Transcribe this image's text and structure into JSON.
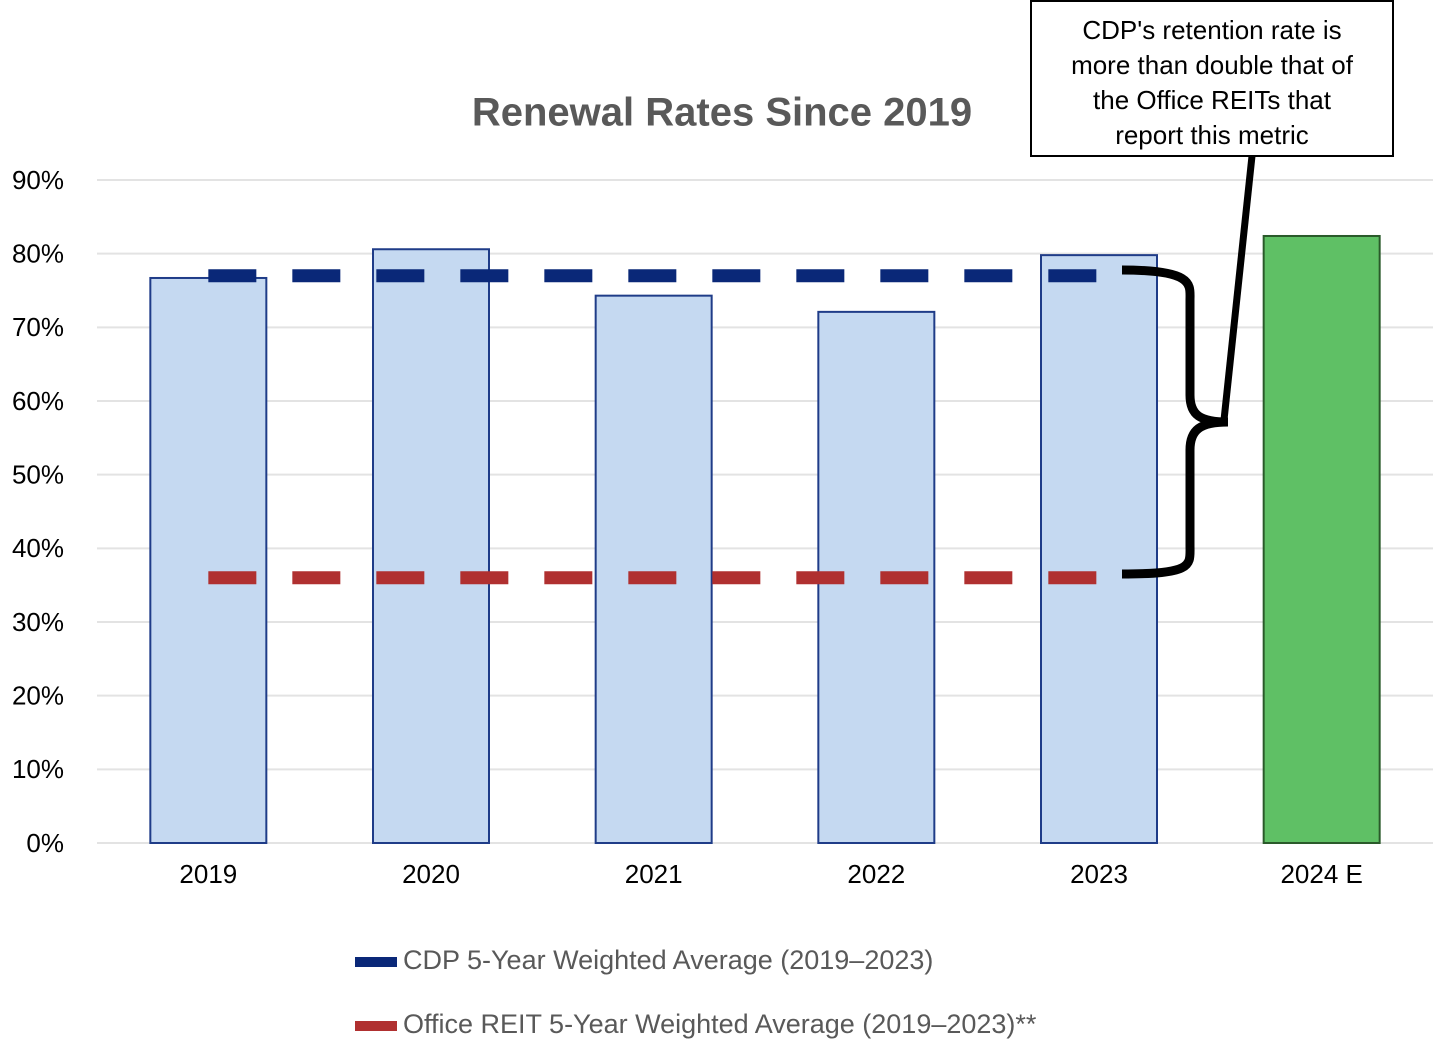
{
  "chart_data": {
    "type": "bar",
    "title": "Renewal Rates Since 2019",
    "categories": [
      "2019",
      "2020",
      "2021",
      "2022",
      "2023",
      "2024 E"
    ],
    "values": [
      76.7,
      80.6,
      74.3,
      72.1,
      79.8,
      82.4
    ],
    "colors": [
      "#c5d9f1",
      "#c5d9f1",
      "#c5d9f1",
      "#c5d9f1",
      "#c5d9f1",
      "#5fc065"
    ],
    "reference_lines": [
      {
        "name": "CDP 5-Year Weighted Average (2019–2023)",
        "color": "#0a2878",
        "value": 77.0
      },
      {
        "name": "Office REIT 5-Year Weighted Average (2019–2023)**",
        "color": "#b03030",
        "value": 36.0
      }
    ],
    "annotation": [
      "CDP's retention rate is",
      "more than double that of",
      "the Office REITs that",
      "report this metric"
    ],
    "ylim": [
      0,
      90
    ],
    "yticks": [
      {
        "value": 0,
        "label": "0%"
      },
      {
        "value": 10,
        "label": "10%"
      },
      {
        "value": 20,
        "label": "20%"
      },
      {
        "value": 30,
        "label": "30%"
      },
      {
        "value": 40,
        "label": "40%"
      },
      {
        "value": 50,
        "label": "50%"
      },
      {
        "value": 60,
        "label": "60%"
      },
      {
        "value": 70,
        "label": "70%"
      },
      {
        "value": 80,
        "label": "80%"
      },
      {
        "value": 90,
        "label": "90%"
      }
    ],
    "grid": true
  }
}
